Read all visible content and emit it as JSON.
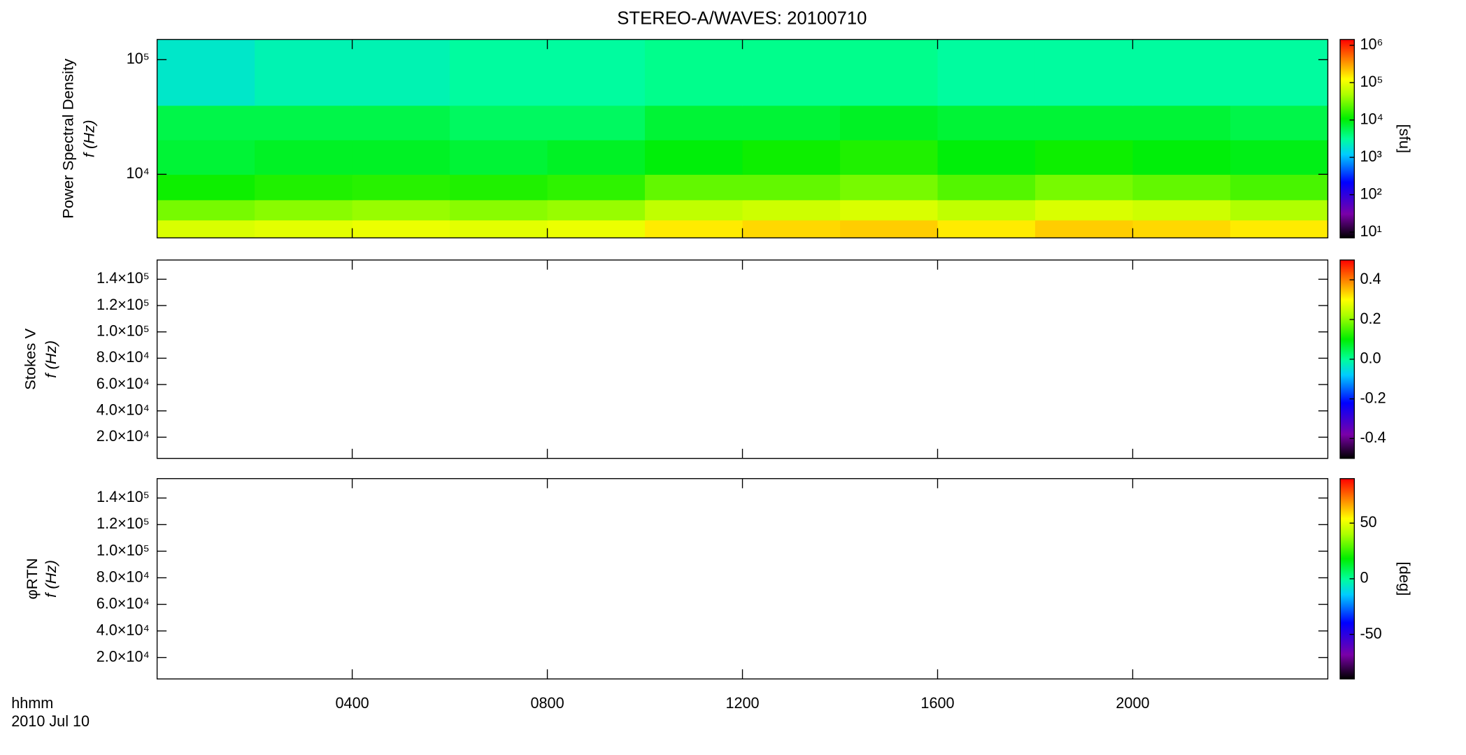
{
  "chart_data": [
    {
      "type": "heatmap",
      "title": "STEREO-A/WAVES: 20100710",
      "ylabel": [
        "Power Spectral Density",
        "f (Hz)"
      ],
      "yscale": "log",
      "ylim": [
        2790,
        150000
      ],
      "yticks": [
        {
          "value": 10000,
          "label": "10⁴"
        },
        {
          "value": 100000,
          "label": "10⁵"
        }
      ],
      "xlim": [
        0,
        24
      ],
      "xbins": [
        0,
        2,
        4,
        6,
        8,
        10,
        12,
        14,
        16,
        18,
        20,
        22,
        24
      ],
      "ybins": [
        2790,
        4000,
        6000,
        10000,
        20000,
        40000,
        150000
      ],
      "z": [
        [
          80000,
          90000,
          100000,
          90000,
          100000,
          150000,
          180000,
          200000,
          150000,
          200000,
          180000,
          150000
        ],
        [
          30000,
          35000,
          40000,
          35000,
          40000,
          60000,
          70000,
          80000,
          60000,
          80000,
          70000,
          50000
        ],
        [
          12000,
          14000,
          15000,
          14000,
          16000,
          25000,
          25000,
          30000,
          22000,
          30000,
          25000,
          20000
        ],
        [
          7000,
          8000,
          8000,
          7000,
          8000,
          10000,
          12000,
          14000,
          10000,
          12000,
          10000,
          9000
        ],
        [
          6000,
          6000,
          6000,
          5000,
          5000,
          7000,
          7000,
          8000,
          7000,
          7000,
          7000,
          6000
        ],
        [
          2000,
          2500,
          2500,
          3000,
          3000,
          3500,
          3500,
          3500,
          3000,
          3000,
          3000,
          3000
        ]
      ],
      "cscale": "log",
      "clim": [
        7,
        1430000
      ],
      "cticks": [
        {
          "value": 10,
          "label": "10¹"
        },
        {
          "value": 100,
          "label": "10²"
        },
        {
          "value": 1000,
          "label": "10³"
        },
        {
          "value": 10000,
          "label": "10⁴"
        },
        {
          "value": 100000,
          "label": "10⁵"
        },
        {
          "value": 1000000,
          "label": "10⁶"
        }
      ],
      "clabel": "[sfu]",
      "colormap": [
        [
          0,
          "#000000"
        ],
        [
          0.12,
          "#7a00a8"
        ],
        [
          0.28,
          "#0000ff"
        ],
        [
          0.42,
          "#00ccff"
        ],
        [
          0.5,
          "#00ff99"
        ],
        [
          0.6,
          "#00ee00"
        ],
        [
          0.72,
          "#aaff00"
        ],
        [
          0.8,
          "#ffff00"
        ],
        [
          0.88,
          "#ff9900"
        ],
        [
          1,
          "#ff0000"
        ]
      ]
    },
    {
      "type": "heatmap",
      "ylabel": [
        "Stokes V",
        "f (Hz)"
      ],
      "yscale": "linear",
      "ylim": [
        3900,
        154600
      ],
      "yticks": [
        {
          "value": 20000,
          "label": "2.0×10⁴"
        },
        {
          "value": 40000,
          "label": "4.0×10⁴"
        },
        {
          "value": 60000,
          "label": "6.0×10⁴"
        },
        {
          "value": 80000,
          "label": "8.0×10⁴"
        },
        {
          "value": 100000,
          "label": "1.0×10⁵"
        },
        {
          "value": 120000,
          "label": "1.2×10⁵"
        },
        {
          "value": 140000,
          "label": "1.4×10⁵"
        }
      ],
      "xlim": [
        0,
        24
      ],
      "cscale": "linear",
      "clim": [
        -0.5,
        0.5
      ],
      "cticks": [
        -0.4,
        -0.2,
        {
          "value": 0,
          "label": "0.0"
        },
        0.2,
        0.4
      ]
    },
    {
      "type": "heatmap",
      "ylabel": [
        "φRTN",
        "f (Hz)"
      ],
      "yscale": "linear",
      "ylim": [
        3900,
        154600
      ],
      "yticks": [
        {
          "value": 20000,
          "label": "2.0×10⁴"
        },
        {
          "value": 40000,
          "label": "4.0×10⁴"
        },
        {
          "value": 60000,
          "label": "6.0×10⁴"
        },
        {
          "value": 80000,
          "label": "8.0×10⁴"
        },
        {
          "value": 100000,
          "label": "1.0×10⁵"
        },
        {
          "value": 120000,
          "label": "1.2×10⁵"
        },
        {
          "value": 140000,
          "label": "1.4×10⁵"
        }
      ],
      "xlim": [
        0,
        24
      ],
      "xlabel": [
        "hhmm",
        "2010 Jul 10"
      ],
      "xticks": [
        {
          "value": 4,
          "label": "0400"
        },
        {
          "value": 8,
          "label": "0800"
        },
        {
          "value": 12,
          "label": "1200"
        },
        {
          "value": 16,
          "label": "1600"
        },
        {
          "value": 20,
          "label": "2000"
        }
      ],
      "cscale": "linear",
      "clim": [
        -90,
        90
      ],
      "cticks": [
        -50,
        0,
        50
      ],
      "clabel": "[deg]"
    }
  ]
}
